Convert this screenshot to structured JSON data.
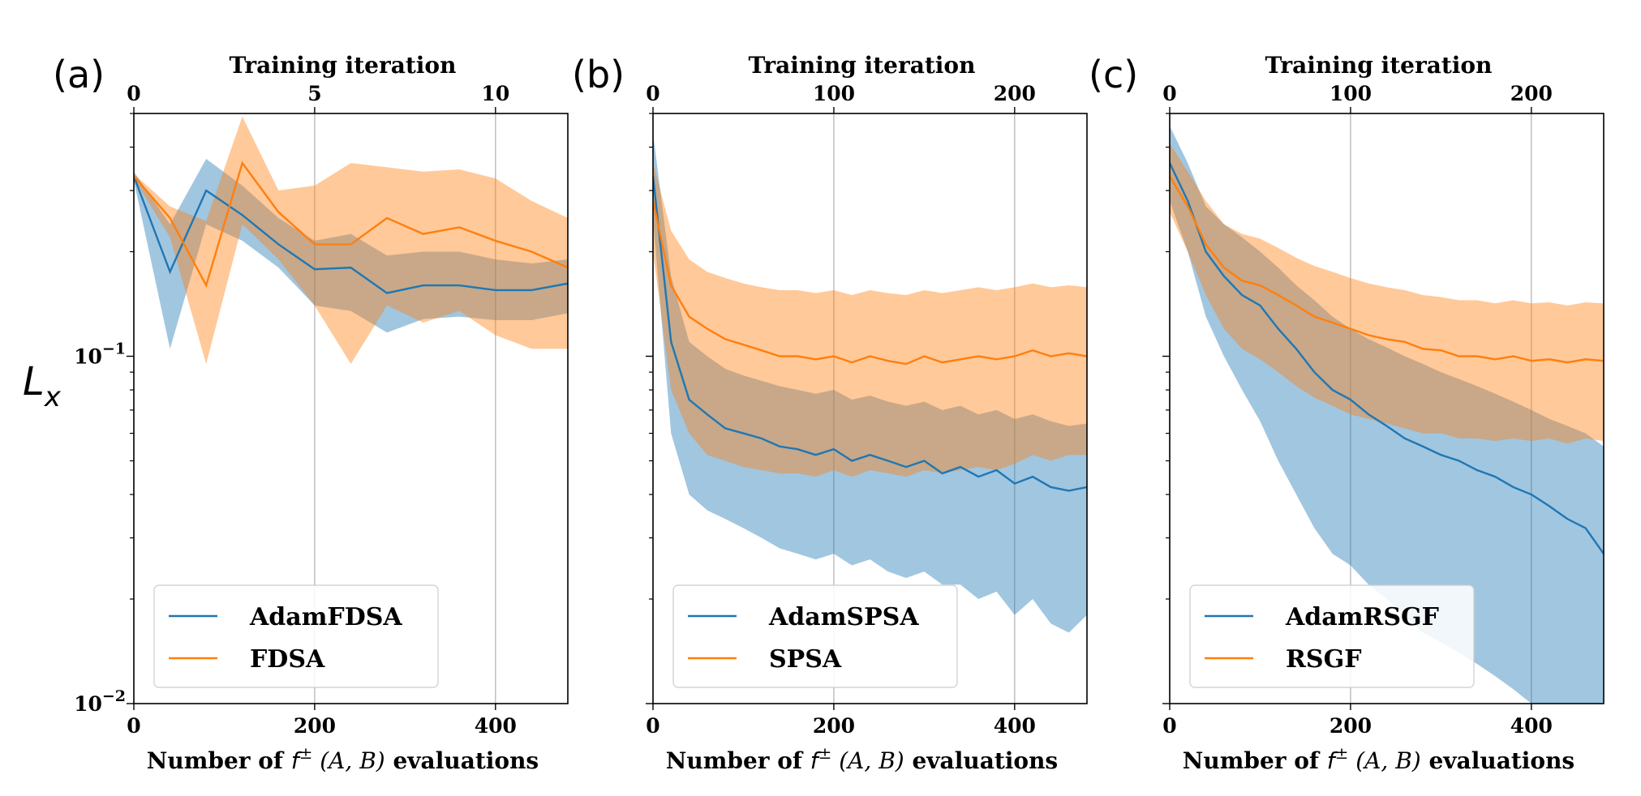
{
  "figure": {
    "ylabel": "L",
    "ylabel_sub": "x",
    "ytick_top_label": "10",
    "ytick_top_exp": "−1",
    "ytick_bottom_label": "10",
    "ytick_bottom_exp": "−2",
    "xlabel_prefix": "Number of ",
    "xlabel_math": "f",
    "xlabel_sup": "±",
    "xlabel_args": " (A, B)",
    "xlabel_suffix": " evaluations",
    "top_xlabel": "Training iteration"
  },
  "chart_data": [
    {
      "type": "line",
      "panel": "(a)",
      "x_bottom_ticks": [
        "0",
        "200",
        "400"
      ],
      "x_top_ticks": [
        "0",
        "5",
        "10"
      ],
      "xlim": [
        0,
        480
      ],
      "ylim": [
        0.01,
        0.5
      ],
      "yscale": "log",
      "grid": "x",
      "legend_placement": "lower-left",
      "x": [
        0,
        40,
        80,
        120,
        160,
        200,
        240,
        280,
        320,
        360,
        400,
        440,
        480
      ],
      "series": [
        {
          "name": "AdamFDSA",
          "color": "#1f77b4",
          "mean": [
            0.33,
            0.175,
            0.3,
            0.255,
            0.21,
            0.178,
            0.18,
            0.152,
            0.16,
            0.16,
            0.155,
            0.155,
            0.162
          ],
          "lower": [
            0.32,
            0.105,
            0.24,
            0.215,
            0.18,
            0.14,
            0.135,
            0.117,
            0.128,
            0.13,
            0.127,
            0.127,
            0.133
          ],
          "upper": [
            0.34,
            0.24,
            0.37,
            0.31,
            0.25,
            0.215,
            0.225,
            0.195,
            0.2,
            0.2,
            0.19,
            0.185,
            0.19
          ]
        },
        {
          "name": "FDSA",
          "color": "#ff7f0e",
          "mean": [
            0.33,
            0.25,
            0.16,
            0.36,
            0.26,
            0.21,
            0.21,
            0.25,
            0.225,
            0.235,
            0.215,
            0.2,
            0.18
          ],
          "lower": [
            0.325,
            0.22,
            0.095,
            0.24,
            0.19,
            0.14,
            0.095,
            0.14,
            0.125,
            0.135,
            0.115,
            0.105,
            0.105
          ],
          "upper": [
            0.335,
            0.27,
            0.245,
            0.49,
            0.3,
            0.31,
            0.36,
            0.35,
            0.34,
            0.345,
            0.325,
            0.28,
            0.25
          ]
        }
      ]
    },
    {
      "type": "line",
      "panel": "(b)",
      "x_bottom_ticks": [
        "0",
        "200",
        "400"
      ],
      "x_top_ticks": [
        "0",
        "100",
        "200"
      ],
      "xlim": [
        0,
        480
      ],
      "ylim": [
        0.01,
        0.5
      ],
      "yscale": "log",
      "grid": "x",
      "legend_placement": "lower-left",
      "x": [
        0,
        20,
        40,
        60,
        80,
        100,
        120,
        140,
        160,
        180,
        200,
        220,
        240,
        260,
        280,
        300,
        320,
        340,
        360,
        380,
        400,
        420,
        440,
        460,
        480
      ],
      "series": [
        {
          "name": "AdamSPSA",
          "color": "#1f77b4",
          "mean": [
            0.33,
            0.11,
            0.075,
            0.068,
            0.062,
            0.06,
            0.058,
            0.055,
            0.054,
            0.052,
            0.054,
            0.05,
            0.052,
            0.05,
            0.048,
            0.05,
            0.046,
            0.048,
            0.045,
            0.047,
            0.043,
            0.045,
            0.042,
            0.041,
            0.042
          ],
          "lower": [
            0.25,
            0.06,
            0.04,
            0.036,
            0.034,
            0.032,
            0.03,
            0.028,
            0.027,
            0.026,
            0.027,
            0.025,
            0.026,
            0.024,
            0.023,
            0.024,
            0.022,
            0.022,
            0.02,
            0.021,
            0.018,
            0.02,
            0.017,
            0.016,
            0.018
          ],
          "upper": [
            0.44,
            0.17,
            0.11,
            0.1,
            0.092,
            0.088,
            0.085,
            0.082,
            0.08,
            0.078,
            0.08,
            0.075,
            0.077,
            0.074,
            0.072,
            0.074,
            0.07,
            0.072,
            0.068,
            0.07,
            0.066,
            0.068,
            0.065,
            0.063,
            0.064
          ]
        },
        {
          "name": "SPSA",
          "color": "#ff7f0e",
          "mean": [
            0.28,
            0.16,
            0.13,
            0.12,
            0.112,
            0.108,
            0.104,
            0.1,
            0.1,
            0.098,
            0.1,
            0.096,
            0.1,
            0.097,
            0.095,
            0.1,
            0.096,
            0.098,
            0.1,
            0.098,
            0.1,
            0.104,
            0.1,
            0.102,
            0.1
          ],
          "lower": [
            0.2,
            0.08,
            0.06,
            0.052,
            0.05,
            0.048,
            0.047,
            0.046,
            0.046,
            0.045,
            0.047,
            0.045,
            0.047,
            0.046,
            0.045,
            0.047,
            0.046,
            0.047,
            0.048,
            0.047,
            0.049,
            0.052,
            0.05,
            0.052,
            0.052
          ],
          "upper": [
            0.36,
            0.23,
            0.19,
            0.175,
            0.168,
            0.162,
            0.158,
            0.155,
            0.155,
            0.152,
            0.155,
            0.15,
            0.155,
            0.152,
            0.15,
            0.155,
            0.152,
            0.155,
            0.158,
            0.155,
            0.158,
            0.162,
            0.158,
            0.16,
            0.158
          ]
        }
      ]
    },
    {
      "type": "line",
      "panel": "(c)",
      "x_bottom_ticks": [
        "0",
        "200",
        "400"
      ],
      "x_top_ticks": [
        "0",
        "100",
        "200"
      ],
      "xlim": [
        0,
        480
      ],
      "ylim": [
        0.01,
        0.5
      ],
      "yscale": "log",
      "grid": "x",
      "legend_placement": "lower-left",
      "x": [
        0,
        20,
        40,
        60,
        80,
        100,
        120,
        140,
        160,
        180,
        200,
        220,
        240,
        260,
        280,
        300,
        320,
        340,
        360,
        380,
        400,
        420,
        440,
        460,
        480
      ],
      "series": [
        {
          "name": "AdamRSGF",
          "color": "#1f77b4",
          "mean": [
            0.36,
            0.28,
            0.2,
            0.17,
            0.15,
            0.14,
            0.12,
            0.105,
            0.09,
            0.08,
            0.075,
            0.068,
            0.063,
            0.058,
            0.055,
            0.052,
            0.05,
            0.047,
            0.045,
            0.042,
            0.04,
            0.037,
            0.034,
            0.032,
            0.027
          ],
          "lower": [
            0.28,
            0.2,
            0.13,
            0.1,
            0.08,
            0.065,
            0.05,
            0.04,
            0.032,
            0.027,
            0.025,
            0.022,
            0.02,
            0.018,
            0.016,
            0.015,
            0.014,
            0.013,
            0.012,
            0.011,
            0.01,
            0.01,
            0.01,
            0.01,
            0.01
          ],
          "upper": [
            0.46,
            0.36,
            0.27,
            0.24,
            0.22,
            0.2,
            0.18,
            0.16,
            0.145,
            0.13,
            0.12,
            0.112,
            0.106,
            0.1,
            0.095,
            0.09,
            0.086,
            0.082,
            0.078,
            0.074,
            0.07,
            0.066,
            0.063,
            0.06,
            0.055
          ]
        },
        {
          "name": "RSGF",
          "color": "#ff7f0e",
          "mean": [
            0.33,
            0.27,
            0.21,
            0.18,
            0.165,
            0.16,
            0.15,
            0.14,
            0.13,
            0.125,
            0.12,
            0.115,
            0.112,
            0.11,
            0.105,
            0.104,
            0.1,
            0.1,
            0.098,
            0.1,
            0.097,
            0.098,
            0.096,
            0.098,
            0.097
          ],
          "lower": [
            0.26,
            0.2,
            0.15,
            0.12,
            0.105,
            0.098,
            0.09,
            0.082,
            0.076,
            0.072,
            0.068,
            0.066,
            0.064,
            0.062,
            0.06,
            0.06,
            0.058,
            0.058,
            0.057,
            0.058,
            0.057,
            0.058,
            0.056,
            0.058,
            0.057
          ],
          "upper": [
            0.41,
            0.34,
            0.28,
            0.24,
            0.225,
            0.218,
            0.205,
            0.192,
            0.182,
            0.175,
            0.168,
            0.162,
            0.158,
            0.155,
            0.15,
            0.148,
            0.145,
            0.145,
            0.142,
            0.145,
            0.142,
            0.143,
            0.14,
            0.143,
            0.142
          ]
        }
      ]
    }
  ]
}
